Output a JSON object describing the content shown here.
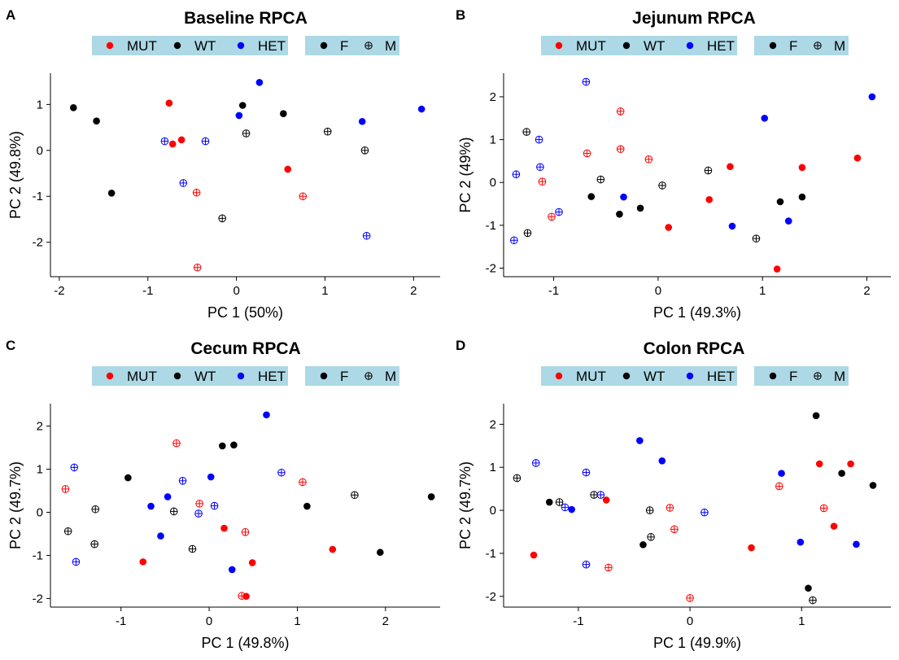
{
  "chart_data": [
    {
      "type": "scatter",
      "panel_label": "A",
      "title": "Baseline RPCA",
      "xlabel": "PC 1 (50%)",
      "ylabel": "PC 2 (49.8%)",
      "xticks": [
        -2,
        -1,
        0,
        1,
        2
      ],
      "yticks": [
        -2,
        -1,
        0,
        1
      ],
      "xlim": [
        -2.1,
        2.3
      ],
      "ylim": [
        -2.75,
        1.68
      ],
      "points": [
        {
          "x": -1.84,
          "y": 0.93,
          "genotype": "WT",
          "sex": "F"
        },
        {
          "x": -1.58,
          "y": 0.64,
          "genotype": "WT",
          "sex": "F"
        },
        {
          "x": -1.41,
          "y": -0.93,
          "genotype": "WT",
          "sex": "F"
        },
        {
          "x": -0.76,
          "y": 1.03,
          "genotype": "MUT",
          "sex": "F"
        },
        {
          "x": -0.72,
          "y": 0.14,
          "genotype": "MUT",
          "sex": "F"
        },
        {
          "x": -0.62,
          "y": 0.23,
          "genotype": "MUT",
          "sex": "F"
        },
        {
          "x": -0.81,
          "y": 0.2,
          "genotype": "HET",
          "sex": "M"
        },
        {
          "x": -0.6,
          "y": -0.71,
          "genotype": "HET",
          "sex": "M"
        },
        {
          "x": -0.45,
          "y": -0.92,
          "genotype": "MUT",
          "sex": "M"
        },
        {
          "x": -0.35,
          "y": 0.2,
          "genotype": "HET",
          "sex": "M"
        },
        {
          "x": -0.44,
          "y": -2.55,
          "genotype": "MUT",
          "sex": "M"
        },
        {
          "x": -0.16,
          "y": -1.48,
          "genotype": "WT",
          "sex": "M"
        },
        {
          "x": 0.03,
          "y": 0.76,
          "genotype": "HET",
          "sex": "F"
        },
        {
          "x": 0.07,
          "y": 0.98,
          "genotype": "WT",
          "sex": "F"
        },
        {
          "x": 0.26,
          "y": 1.48,
          "genotype": "HET",
          "sex": "F"
        },
        {
          "x": 0.11,
          "y": 0.37,
          "genotype": "WT",
          "sex": "M"
        },
        {
          "x": 0.53,
          "y": 0.8,
          "genotype": "WT",
          "sex": "F"
        },
        {
          "x": 0.58,
          "y": -0.41,
          "genotype": "MUT",
          "sex": "F"
        },
        {
          "x": 0.75,
          "y": -1.0,
          "genotype": "MUT",
          "sex": "M"
        },
        {
          "x": 1.03,
          "y": 0.41,
          "genotype": "WT",
          "sex": "M"
        },
        {
          "x": 1.42,
          "y": 0.63,
          "genotype": "HET",
          "sex": "F"
        },
        {
          "x": 1.45,
          "y": 0.0,
          "genotype": "WT",
          "sex": "M"
        },
        {
          "x": 1.47,
          "y": -1.86,
          "genotype": "HET",
          "sex": "M"
        },
        {
          "x": 2.09,
          "y": 0.9,
          "genotype": "HET",
          "sex": "F"
        }
      ]
    },
    {
      "type": "scatter",
      "panel_label": "B",
      "title": "Jejunum RPCA",
      "xlabel": "PC 1 (49.3%)",
      "ylabel": "PC 2 (49%)",
      "xticks": [
        -1,
        0,
        1,
        2
      ],
      "yticks": [
        -2,
        -1,
        0,
        1,
        2
      ],
      "xlim": [
        -1.48,
        2.23
      ],
      "ylim": [
        -2.2,
        2.55
      ],
      "points": [
        {
          "x": -1.38,
          "y": -1.35,
          "genotype": "HET",
          "sex": "M"
        },
        {
          "x": -1.36,
          "y": 0.19,
          "genotype": "HET",
          "sex": "M"
        },
        {
          "x": -1.26,
          "y": 1.18,
          "genotype": "WT",
          "sex": "M"
        },
        {
          "x": -1.25,
          "y": -1.18,
          "genotype": "WT",
          "sex": "M"
        },
        {
          "x": -1.14,
          "y": 1.0,
          "genotype": "HET",
          "sex": "M"
        },
        {
          "x": -1.13,
          "y": 0.36,
          "genotype": "HET",
          "sex": "M"
        },
        {
          "x": -1.11,
          "y": 0.02,
          "genotype": "MUT",
          "sex": "M"
        },
        {
          "x": -1.02,
          "y": -0.8,
          "genotype": "MUT",
          "sex": "M"
        },
        {
          "x": -0.95,
          "y": -0.69,
          "genotype": "HET",
          "sex": "M"
        },
        {
          "x": -0.69,
          "y": 2.35,
          "genotype": "HET",
          "sex": "M"
        },
        {
          "x": -0.68,
          "y": 0.68,
          "genotype": "MUT",
          "sex": "M"
        },
        {
          "x": -0.64,
          "y": -0.33,
          "genotype": "WT",
          "sex": "F"
        },
        {
          "x": -0.55,
          "y": 0.07,
          "genotype": "WT",
          "sex": "M"
        },
        {
          "x": -0.36,
          "y": 1.66,
          "genotype": "MUT",
          "sex": "M"
        },
        {
          "x": -0.36,
          "y": 0.78,
          "genotype": "MUT",
          "sex": "M"
        },
        {
          "x": -0.37,
          "y": -0.74,
          "genotype": "WT",
          "sex": "F"
        },
        {
          "x": -0.33,
          "y": -0.34,
          "genotype": "HET",
          "sex": "F"
        },
        {
          "x": -0.17,
          "y": -0.6,
          "genotype": "WT",
          "sex": "F"
        },
        {
          "x": -0.09,
          "y": 0.54,
          "genotype": "MUT",
          "sex": "M"
        },
        {
          "x": 0.04,
          "y": -0.07,
          "genotype": "WT",
          "sex": "M"
        },
        {
          "x": 0.1,
          "y": -1.05,
          "genotype": "MUT",
          "sex": "F"
        },
        {
          "x": 0.48,
          "y": 0.28,
          "genotype": "WT",
          "sex": "M"
        },
        {
          "x": 0.49,
          "y": -0.4,
          "genotype": "MUT",
          "sex": "F"
        },
        {
          "x": 0.69,
          "y": 0.37,
          "genotype": "MUT",
          "sex": "F"
        },
        {
          "x": 0.71,
          "y": -1.02,
          "genotype": "HET",
          "sex": "F"
        },
        {
          "x": 0.94,
          "y": -1.31,
          "genotype": "WT",
          "sex": "M"
        },
        {
          "x": 1.02,
          "y": 1.5,
          "genotype": "HET",
          "sex": "F"
        },
        {
          "x": 1.14,
          "y": -2.02,
          "genotype": "MUT",
          "sex": "F"
        },
        {
          "x": 1.17,
          "y": -0.45,
          "genotype": "WT",
          "sex": "F"
        },
        {
          "x": 1.25,
          "y": -0.9,
          "genotype": "HET",
          "sex": "F"
        },
        {
          "x": 1.38,
          "y": 0.35,
          "genotype": "MUT",
          "sex": "F"
        },
        {
          "x": 1.38,
          "y": -0.34,
          "genotype": "WT",
          "sex": "F"
        },
        {
          "x": 1.91,
          "y": 0.57,
          "genotype": "MUT",
          "sex": "F"
        },
        {
          "x": 2.05,
          "y": 2.0,
          "genotype": "HET",
          "sex": "F"
        }
      ]
    },
    {
      "type": "scatter",
      "panel_label": "C",
      "title": "Cecum RPCA",
      "xlabel": "PC 1 (49.8%)",
      "ylabel": "PC 2 (49.7%)",
      "xticks": [
        -1,
        0,
        1,
        2
      ],
      "yticks": [
        -2,
        -1,
        0,
        1,
        2
      ],
      "xlim": [
        -1.8,
        2.62
      ],
      "ylim": [
        -2.2,
        2.52
      ],
      "points": [
        {
          "x": -1.63,
          "y": 0.54,
          "genotype": "MUT",
          "sex": "M"
        },
        {
          "x": -1.53,
          "y": 1.04,
          "genotype": "HET",
          "sex": "M"
        },
        {
          "x": -1.6,
          "y": -0.44,
          "genotype": "WT",
          "sex": "M"
        },
        {
          "x": -1.51,
          "y": -1.15,
          "genotype": "HET",
          "sex": "M"
        },
        {
          "x": -1.29,
          "y": 0.07,
          "genotype": "WT",
          "sex": "M"
        },
        {
          "x": -1.3,
          "y": -0.74,
          "genotype": "WT",
          "sex": "M"
        },
        {
          "x": -0.92,
          "y": 0.8,
          "genotype": "WT",
          "sex": "F"
        },
        {
          "x": -0.75,
          "y": -1.15,
          "genotype": "MUT",
          "sex": "F"
        },
        {
          "x": -0.66,
          "y": 0.14,
          "genotype": "HET",
          "sex": "F"
        },
        {
          "x": -0.55,
          "y": -0.55,
          "genotype": "HET",
          "sex": "F"
        },
        {
          "x": -0.47,
          "y": 0.36,
          "genotype": "HET",
          "sex": "F"
        },
        {
          "x": -0.4,
          "y": 0.02,
          "genotype": "WT",
          "sex": "M"
        },
        {
          "x": -0.37,
          "y": 1.6,
          "genotype": "MUT",
          "sex": "M"
        },
        {
          "x": -0.3,
          "y": 0.73,
          "genotype": "HET",
          "sex": "M"
        },
        {
          "x": -0.19,
          "y": -0.85,
          "genotype": "WT",
          "sex": "M"
        },
        {
          "x": -0.11,
          "y": 0.2,
          "genotype": "MUT",
          "sex": "M"
        },
        {
          "x": -0.12,
          "y": -0.03,
          "genotype": "HET",
          "sex": "M"
        },
        {
          "x": 0.02,
          "y": 0.82,
          "genotype": "HET",
          "sex": "F"
        },
        {
          "x": 0.06,
          "y": 0.15,
          "genotype": "HET",
          "sex": "M"
        },
        {
          "x": 0.15,
          "y": 1.54,
          "genotype": "WT",
          "sex": "F"
        },
        {
          "x": 0.17,
          "y": -0.37,
          "genotype": "MUT",
          "sex": "F"
        },
        {
          "x": 0.28,
          "y": 1.56,
          "genotype": "WT",
          "sex": "F"
        },
        {
          "x": 0.26,
          "y": -1.33,
          "genotype": "HET",
          "sex": "F"
        },
        {
          "x": 0.37,
          "y": -1.94,
          "genotype": "MUT",
          "sex": "M"
        },
        {
          "x": 0.41,
          "y": -0.46,
          "genotype": "MUT",
          "sex": "M"
        },
        {
          "x": 0.42,
          "y": -1.95,
          "genotype": "MUT",
          "sex": "F"
        },
        {
          "x": 0.49,
          "y": -1.17,
          "genotype": "MUT",
          "sex": "F"
        },
        {
          "x": 0.65,
          "y": 2.26,
          "genotype": "HET",
          "sex": "F"
        },
        {
          "x": 0.82,
          "y": 0.92,
          "genotype": "HET",
          "sex": "M"
        },
        {
          "x": 1.06,
          "y": 0.7,
          "genotype": "MUT",
          "sex": "M"
        },
        {
          "x": 1.11,
          "y": 0.14,
          "genotype": "WT",
          "sex": "F"
        },
        {
          "x": 1.4,
          "y": -0.86,
          "genotype": "MUT",
          "sex": "F"
        },
        {
          "x": 1.65,
          "y": 0.4,
          "genotype": "WT",
          "sex": "M"
        },
        {
          "x": 1.94,
          "y": -0.93,
          "genotype": "WT",
          "sex": "F"
        },
        {
          "x": 2.52,
          "y": 0.36,
          "genotype": "WT",
          "sex": "F"
        }
      ]
    },
    {
      "type": "scatter",
      "panel_label": "D",
      "title": "Colon RPCA",
      "xlabel": "PC 1 (49.9%)",
      "ylabel": "PC 2 (49.7%)",
      "xticks": [
        -1,
        0,
        1
      ],
      "yticks": [
        -2,
        -1,
        0,
        1,
        2
      ],
      "xlim": [
        -1.67,
        1.8
      ],
      "ylim": [
        -2.25,
        2.48
      ],
      "points": [
        {
          "x": -1.55,
          "y": 0.75,
          "genotype": "WT",
          "sex": "M"
        },
        {
          "x": -1.38,
          "y": 1.1,
          "genotype": "HET",
          "sex": "M"
        },
        {
          "x": -1.4,
          "y": -1.04,
          "genotype": "MUT",
          "sex": "F"
        },
        {
          "x": -1.26,
          "y": 0.19,
          "genotype": "WT",
          "sex": "F"
        },
        {
          "x": -1.17,
          "y": 0.19,
          "genotype": "WT",
          "sex": "M"
        },
        {
          "x": -1.12,
          "y": 0.07,
          "genotype": "HET",
          "sex": "M"
        },
        {
          "x": -1.06,
          "y": 0.02,
          "genotype": "HET",
          "sex": "F"
        },
        {
          "x": -0.93,
          "y": 0.88,
          "genotype": "HET",
          "sex": "M"
        },
        {
          "x": -0.93,
          "y": -1.26,
          "genotype": "HET",
          "sex": "M"
        },
        {
          "x": -0.86,
          "y": 0.36,
          "genotype": "WT",
          "sex": "M"
        },
        {
          "x": -0.8,
          "y": 0.36,
          "genotype": "HET",
          "sex": "M"
        },
        {
          "x": -0.75,
          "y": 0.24,
          "genotype": "MUT",
          "sex": "F"
        },
        {
          "x": -0.73,
          "y": -1.33,
          "genotype": "MUT",
          "sex": "M"
        },
        {
          "x": -0.45,
          "y": 1.62,
          "genotype": "HET",
          "sex": "F"
        },
        {
          "x": -0.42,
          "y": -0.8,
          "genotype": "WT",
          "sex": "F"
        },
        {
          "x": -0.36,
          "y": 0.0,
          "genotype": "WT",
          "sex": "M"
        },
        {
          "x": -0.35,
          "y": -0.62,
          "genotype": "WT",
          "sex": "M"
        },
        {
          "x": -0.25,
          "y": 1.15,
          "genotype": "HET",
          "sex": "F"
        },
        {
          "x": -0.18,
          "y": 0.06,
          "genotype": "MUT",
          "sex": "M"
        },
        {
          "x": -0.14,
          "y": -0.44,
          "genotype": "MUT",
          "sex": "M"
        },
        {
          "x": 0.0,
          "y": -2.04,
          "genotype": "MUT",
          "sex": "M"
        },
        {
          "x": 0.13,
          "y": -0.05,
          "genotype": "HET",
          "sex": "M"
        },
        {
          "x": 0.55,
          "y": -0.87,
          "genotype": "MUT",
          "sex": "F"
        },
        {
          "x": 0.8,
          "y": 0.56,
          "genotype": "MUT",
          "sex": "M"
        },
        {
          "x": 0.82,
          "y": 0.86,
          "genotype": "HET",
          "sex": "F"
        },
        {
          "x": 0.99,
          "y": -0.74,
          "genotype": "HET",
          "sex": "F"
        },
        {
          "x": 1.06,
          "y": -1.81,
          "genotype": "WT",
          "sex": "F"
        },
        {
          "x": 1.1,
          "y": -2.09,
          "genotype": "WT",
          "sex": "M"
        },
        {
          "x": 1.13,
          "y": 2.2,
          "genotype": "WT",
          "sex": "F"
        },
        {
          "x": 1.16,
          "y": 1.08,
          "genotype": "MUT",
          "sex": "F"
        },
        {
          "x": 1.2,
          "y": 0.05,
          "genotype": "MUT",
          "sex": "M"
        },
        {
          "x": 1.29,
          "y": -0.37,
          "genotype": "MUT",
          "sex": "F"
        },
        {
          "x": 1.36,
          "y": 0.86,
          "genotype": "WT",
          "sex": "F"
        },
        {
          "x": 1.44,
          "y": 1.08,
          "genotype": "MUT",
          "sex": "F"
        },
        {
          "x": 1.49,
          "y": -0.79,
          "genotype": "HET",
          "sex": "F"
        },
        {
          "x": 1.64,
          "y": 0.58,
          "genotype": "WT",
          "sex": "F"
        }
      ]
    }
  ],
  "legend": {
    "background_color": "#add8e6",
    "genotype_items": [
      {
        "label": "MUT",
        "color": "#ff0000"
      },
      {
        "label": "WT",
        "color": "#000000"
      },
      {
        "label": "HET",
        "color": "#0000ff"
      }
    ],
    "sex_items": [
      {
        "label": "F",
        "shape": "filled-circle"
      },
      {
        "label": "M",
        "shape": "crossed-open-circle"
      }
    ]
  },
  "colors": {
    "MUT": "#ff0000",
    "WT": "#000000",
    "HET": "#0000ff"
  }
}
